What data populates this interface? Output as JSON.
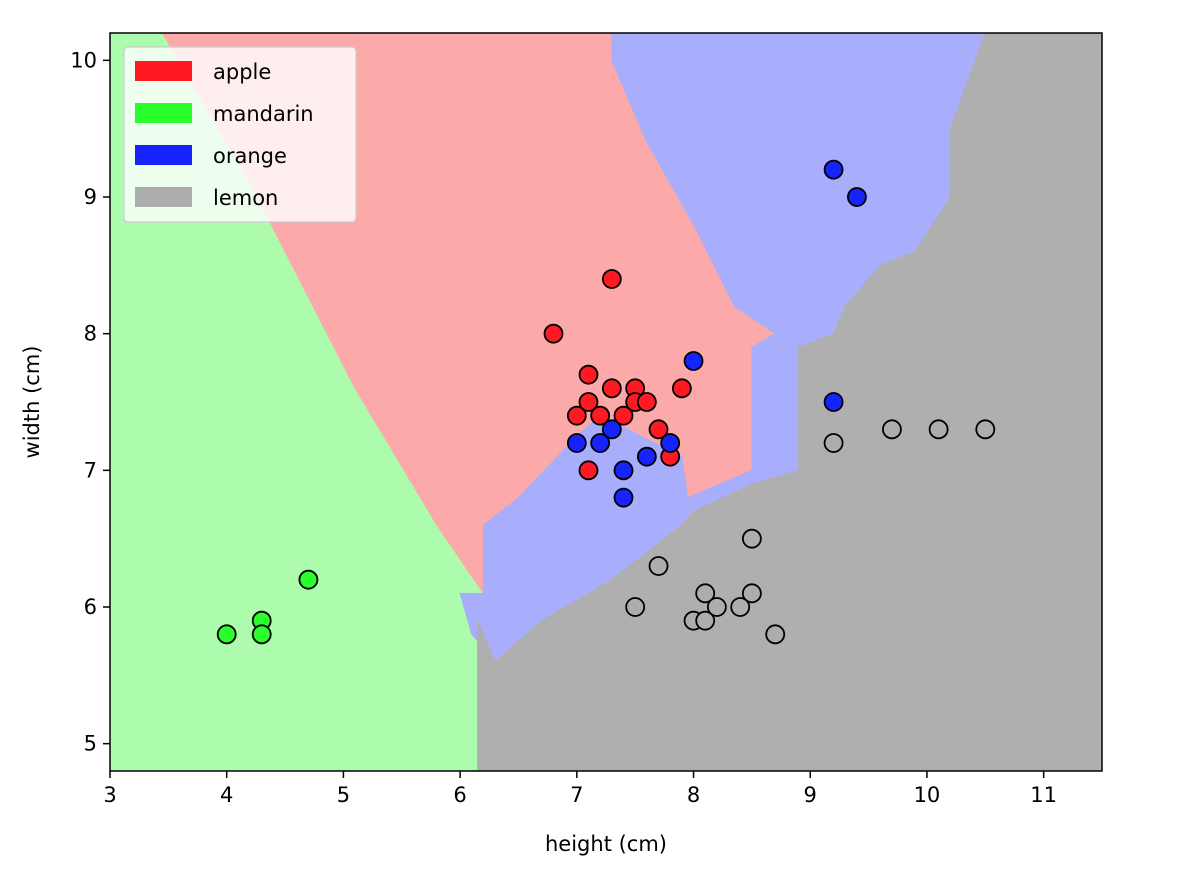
{
  "chart_data": {
    "type": "scatter",
    "title": "",
    "xlabel": "height (cm)",
    "ylabel": "width (cm)",
    "xlim": [
      3,
      11.5
    ],
    "ylim": [
      4.8,
      10.2
    ],
    "xticks": [
      "3",
      "4",
      "5",
      "6",
      "7",
      "8",
      "9",
      "10",
      "11"
    ],
    "yticks": [
      "5",
      "6",
      "7",
      "8",
      "9",
      "10"
    ],
    "grid": false,
    "legend_position": "top-left",
    "background": "decision regions (k-NN classifier) colored per class",
    "decision_regions": [
      {
        "class": "mandarin",
        "color": "#adfcad",
        "polygon": [
          [
            3,
            4.8
          ],
          [
            3,
            10.2
          ],
          [
            3.45,
            10.2
          ],
          [
            4.2,
            9.1
          ],
          [
            5.1,
            7.6
          ],
          [
            5.8,
            6.6
          ],
          [
            6.2,
            6.1
          ],
          [
            6.15,
            5.9
          ],
          [
            6.15,
            4.8
          ]
        ]
      },
      {
        "class": "apple",
        "color": "#fba9a9",
        "polygon": [
          [
            3.45,
            10.2
          ],
          [
            7.3,
            10.2
          ],
          [
            7.3,
            10.0
          ],
          [
            7.6,
            9.4
          ],
          [
            8.0,
            8.8
          ],
          [
            8.35,
            8.2
          ],
          [
            8.7,
            8.0
          ],
          [
            8.5,
            7.9
          ],
          [
            8.5,
            7.0
          ],
          [
            7.95,
            6.8
          ],
          [
            7.9,
            7.1
          ],
          [
            7.2,
            7.4
          ],
          [
            7.0,
            7.25
          ],
          [
            6.5,
            6.8
          ],
          [
            6.2,
            6.6
          ],
          [
            6.2,
            6.1
          ],
          [
            5.8,
            6.6
          ],
          [
            5.1,
            7.6
          ],
          [
            4.2,
            9.1
          ]
        ]
      },
      {
        "class": "orange",
        "color": "#a9aefc",
        "polygon": [
          [
            7.3,
            10.2
          ],
          [
            10.5,
            10.2
          ],
          [
            10.2,
            9.5
          ],
          [
            10.2,
            9.0
          ],
          [
            9.9,
            8.6
          ],
          [
            9.6,
            8.5
          ],
          [
            9.3,
            8.2
          ],
          [
            9.2,
            8.0
          ],
          [
            8.9,
            7.9
          ],
          [
            8.9,
            7.0
          ],
          [
            8.5,
            6.9
          ],
          [
            8.0,
            6.7
          ],
          [
            7.9,
            6.6
          ],
          [
            7.3,
            6.2
          ],
          [
            7.1,
            6.1
          ],
          [
            6.7,
            5.9
          ],
          [
            6.3,
            5.6
          ],
          [
            6.1,
            5.8
          ],
          [
            6.0,
            6.1
          ],
          [
            6.2,
            6.1
          ],
          [
            6.2,
            6.6
          ],
          [
            6.5,
            6.8
          ],
          [
            7.0,
            7.25
          ],
          [
            7.2,
            7.4
          ],
          [
            7.9,
            7.1
          ],
          [
            7.95,
            6.8
          ],
          [
            8.5,
            7.0
          ],
          [
            8.5,
            7.9
          ],
          [
            8.7,
            8.0
          ],
          [
            8.35,
            8.2
          ],
          [
            8.0,
            8.8
          ],
          [
            7.6,
            9.4
          ],
          [
            7.3,
            10.0
          ]
        ]
      },
      {
        "class": "lemon",
        "color": "#afafaf",
        "polygon": [
          [
            10.5,
            10.2
          ],
          [
            11.5,
            10.2
          ],
          [
            11.5,
            4.8
          ],
          [
            6.15,
            4.8
          ],
          [
            6.15,
            5.9
          ],
          [
            6.3,
            5.6
          ],
          [
            6.7,
            5.9
          ],
          [
            7.1,
            6.1
          ],
          [
            7.3,
            6.2
          ],
          [
            7.9,
            6.6
          ],
          [
            8.0,
            6.7
          ],
          [
            8.5,
            6.9
          ],
          [
            8.9,
            7.0
          ],
          [
            8.9,
            7.9
          ],
          [
            9.2,
            8.0
          ],
          [
            9.3,
            8.2
          ],
          [
            9.6,
            8.5
          ],
          [
            9.9,
            8.6
          ],
          [
            10.2,
            9.0
          ],
          [
            10.2,
            9.5
          ]
        ]
      }
    ],
    "series": [
      {
        "name": "apple",
        "color": "#ff1a23",
        "points": [
          [
            7.3,
            8.4
          ],
          [
            6.8,
            8.0
          ],
          [
            7.1,
            7.7
          ],
          [
            7.3,
            7.6
          ],
          [
            7.5,
            7.6
          ],
          [
            7.9,
            7.6
          ],
          [
            7.1,
            7.5
          ],
          [
            7.5,
            7.5
          ],
          [
            7.6,
            7.5
          ],
          [
            7.0,
            7.4
          ],
          [
            7.2,
            7.4
          ],
          [
            7.4,
            7.4
          ],
          [
            7.7,
            7.3
          ],
          [
            7.8,
            7.1
          ],
          [
            7.1,
            7.0
          ]
        ]
      },
      {
        "name": "mandarin",
        "color": "#2bff2b",
        "points": [
          [
            4.7,
            6.2
          ],
          [
            4.3,
            5.9
          ],
          [
            4.0,
            5.8
          ],
          [
            4.3,
            5.8
          ]
        ]
      },
      {
        "name": "orange",
        "color": "#1723ff",
        "points": [
          [
            9.2,
            9.2
          ],
          [
            9.4,
            9.0
          ],
          [
            8.0,
            7.8
          ],
          [
            9.2,
            7.5
          ],
          [
            7.3,
            7.3
          ],
          [
            7.0,
            7.2
          ],
          [
            7.2,
            7.2
          ],
          [
            7.8,
            7.2
          ],
          [
            7.6,
            7.1
          ],
          [
            7.4,
            7.0
          ],
          [
            7.4,
            6.8
          ]
        ]
      },
      {
        "name": "lemon",
        "color": "#adadad",
        "points": [
          [
            9.7,
            7.3
          ],
          [
            10.1,
            7.3
          ],
          [
            10.5,
            7.3
          ],
          [
            9.2,
            7.2
          ],
          [
            8.5,
            6.5
          ],
          [
            7.7,
            6.3
          ],
          [
            8.1,
            6.1
          ],
          [
            8.5,
            6.1
          ],
          [
            7.5,
            6.0
          ],
          [
            8.2,
            6.0
          ],
          [
            8.4,
            6.0
          ],
          [
            8.0,
            5.9
          ],
          [
            8.1,
            5.9
          ],
          [
            8.7,
            5.8
          ]
        ]
      }
    ],
    "legend": [
      {
        "label": "apple",
        "color": "#ff1a23"
      },
      {
        "label": "mandarin",
        "color": "#2bff2b"
      },
      {
        "label": "orange",
        "color": "#1723ff"
      },
      {
        "label": "lemon",
        "color": "#adadad"
      }
    ]
  }
}
